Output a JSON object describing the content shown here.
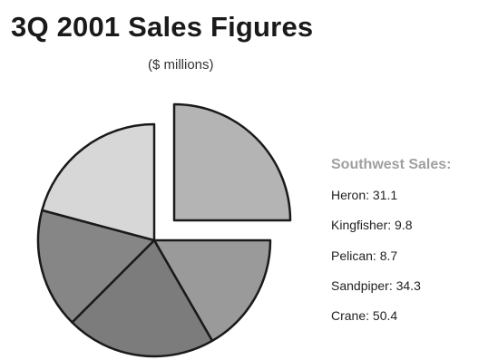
{
  "chart_data": {
    "type": "pie",
    "title": "3Q 2001 Sales Figures",
    "subtitle": "($ millions)",
    "legend_title": "Southwest Sales:",
    "categories": [
      "Heron",
      "Kingfisher",
      "Pelican",
      "Sandpiper",
      "Crane"
    ],
    "values": [
      31.1,
      9.8,
      8.7,
      34.3,
      50.4
    ],
    "legend_lines": [
      "Heron: 31.1",
      "Kingfisher: 9.8",
      "Pelican: 8.7",
      "Sandpiper: 34.3",
      "Crane: 50.4"
    ],
    "exploded": "top-right slice",
    "legend_position": "right"
  },
  "colors": {
    "outline": "#1a1a1a",
    "slice_fills": [
      "#b4b4b4",
      "#9a9a9a",
      "#7c7c7c",
      "#868686",
      "#d7d7d7"
    ],
    "legend_title": "#a0a0a0"
  }
}
